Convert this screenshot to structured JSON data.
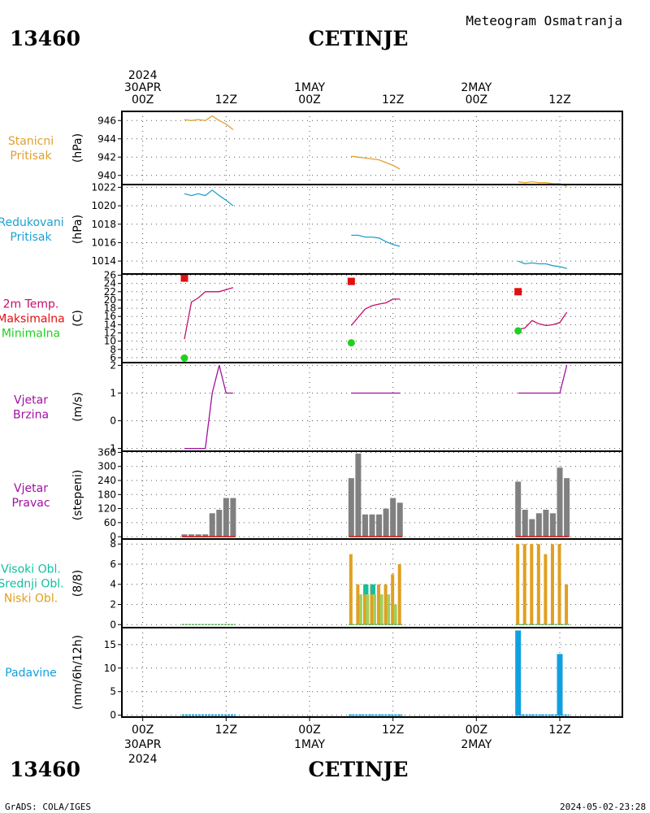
{
  "header": {
    "station_id": "13460",
    "station_name": "CETINJE",
    "title": "Meteogram Osmatranja"
  },
  "footer": {
    "station_id": "13460",
    "station_name": "CETINJE",
    "credit": "GrADS: COLA/IGES",
    "timestamp": "2024-05-02-23:28"
  },
  "colors": {
    "pressure": "#e0a030",
    "reduced": "#20a0d0",
    "temp_line": "#c0106a",
    "tmax": "#e01010",
    "tmin": "#20d020",
    "wind": "#a010a0",
    "bar": "#808080",
    "cloud_high": "#10c0a0",
    "cloud_mid": "#a0d060",
    "cloud_low": "#e0a020",
    "precip": "#10a0e0"
  },
  "time_axis": {
    "ticks": [
      {
        "h": 0,
        "top": [
          "2024",
          "30APR",
          "00Z"
        ],
        "bottom": [
          "00Z",
          "30APR",
          "2024"
        ]
      },
      {
        "h": 12,
        "top": [
          "12Z"
        ],
        "bottom": [
          "12Z"
        ]
      },
      {
        "h": 24,
        "top": [
          "1MAY",
          "00Z"
        ],
        "bottom": [
          "00Z",
          "1MAY"
        ]
      },
      {
        "h": 36,
        "top": [
          "12Z"
        ],
        "bottom": [
          "12Z"
        ]
      },
      {
        "h": 48,
        "top": [
          "2MAY",
          "00Z"
        ],
        "bottom": [
          "00Z",
          "2MAY"
        ]
      },
      {
        "h": 60,
        "top": [
          "12Z"
        ],
        "bottom": [
          "12Z"
        ]
      }
    ],
    "range_hours": [
      -3,
      69
    ]
  },
  "chart_data": [
    {
      "type": "line",
      "label": [
        "Stanicni",
        "Pritisak"
      ],
      "label_color": "#e0a030",
      "ylabel": "(hPa)",
      "yticks": [
        940,
        942,
        944,
        946
      ],
      "ylim": [
        939,
        947
      ],
      "series": [
        {
          "color": "#e0a030",
          "points": [
            [
              6,
              946.1
            ],
            [
              7,
              946.0
            ],
            [
              8,
              946.1
            ],
            [
              9,
              946.0
            ],
            [
              10,
              946.5
            ],
            [
              11,
              946.0
            ],
            [
              12,
              945.6
            ],
            [
              13,
              945.0
            ]
          ]
        },
        {
          "color": "#e0a030",
          "points": [
            [
              30,
              942.1
            ],
            [
              31,
              942.0
            ],
            [
              32,
              941.9
            ],
            [
              33,
              941.8
            ],
            [
              34,
              941.7
            ],
            [
              35,
              941.4
            ],
            [
              36,
              941.1
            ],
            [
              37,
              940.7
            ]
          ]
        },
        {
          "color": "#e0a030",
          "points": [
            [
              54,
              939.3
            ],
            [
              55,
              939.2
            ],
            [
              56,
              939.3
            ],
            [
              57,
              939.2
            ],
            [
              58,
              939.2
            ],
            [
              59,
              939.1
            ],
            [
              60,
              939.1
            ],
            [
              61,
              938.8
            ]
          ]
        }
      ]
    },
    {
      "type": "line",
      "label": [
        "Redukovani",
        "Pritisak"
      ],
      "label_color": "#20a0d0",
      "ylabel": "(hPa)",
      "yticks": [
        1014,
        1016,
        1018,
        1020,
        1022
      ],
      "ylim": [
        1012.6,
        1022.3
      ],
      "series": [
        {
          "color": "#20a0d0",
          "points": [
            [
              6,
              1021.3
            ],
            [
              7,
              1021.1
            ],
            [
              8,
              1021.3
            ],
            [
              9,
              1021.1
            ],
            [
              10,
              1021.7
            ],
            [
              11,
              1021.1
            ],
            [
              12,
              1020.6
            ],
            [
              13,
              1020.0
            ]
          ]
        },
        {
          "color": "#20a0d0",
          "points": [
            [
              30,
              1016.8
            ],
            [
              31,
              1016.8
            ],
            [
              32,
              1016.6
            ],
            [
              33,
              1016.6
            ],
            [
              34,
              1016.5
            ],
            [
              35,
              1016.1
            ],
            [
              36,
              1015.8
            ],
            [
              37,
              1015.6
            ]
          ]
        },
        {
          "color": "#20a0d0",
          "points": [
            [
              54,
              1014.0
            ],
            [
              55,
              1013.7
            ],
            [
              56,
              1013.8
            ],
            [
              57,
              1013.7
            ],
            [
              58,
              1013.7
            ],
            [
              59,
              1013.5
            ],
            [
              60,
              1013.4
            ],
            [
              61,
              1013.2
            ]
          ]
        }
      ]
    },
    {
      "type": "line",
      "label": [
        "2m Temp.",
        "Maksimalna",
        "Minimalna"
      ],
      "label_colors": [
        "#c0106a",
        "#e01010",
        "#20d020"
      ],
      "ylabel": "(C)",
      "yticks": [
        6,
        8,
        10,
        12,
        14,
        16,
        18,
        20,
        22,
        24,
        26
      ],
      "ylim": [
        4.8,
        26.3
      ],
      "series": [
        {
          "color": "#c0106a",
          "points": [
            [
              6,
              10.5
            ],
            [
              7,
              19.5
            ],
            [
              8,
              20.5
            ],
            [
              9,
              22.0
            ],
            [
              10,
              22.0
            ],
            [
              11,
              22.0
            ],
            [
              12,
              22.5
            ],
            [
              13,
              23.0
            ]
          ]
        },
        {
          "color": "#c0106a",
          "points": [
            [
              30,
              13.8
            ],
            [
              31,
              15.8
            ],
            [
              32,
              17.8
            ],
            [
              33,
              18.6
            ],
            [
              34,
              19.0
            ],
            [
              35,
              19.3
            ],
            [
              36,
              20.2
            ],
            [
              37,
              20.2
            ]
          ]
        },
        {
          "color": "#c0106a",
          "points": [
            [
              54,
              12.8
            ],
            [
              55,
              13.2
            ],
            [
              56,
              15.0
            ],
            [
              57,
              14.2
            ],
            [
              58,
              13.8
            ],
            [
              59,
              14.0
            ],
            [
              60,
              14.5
            ],
            [
              61,
              17.0
            ]
          ]
        }
      ],
      "markers": [
        {
          "color": "#e01010",
          "shape": "square",
          "points": [
            [
              6,
              25.3
            ],
            [
              30,
              24.5
            ],
            [
              54,
              22.0
            ]
          ]
        },
        {
          "color": "#20d020",
          "shape": "circle",
          "points": [
            [
              6,
              5.9
            ],
            [
              30,
              9.6
            ],
            [
              54,
              12.5
            ]
          ]
        }
      ]
    },
    {
      "type": "line",
      "label": [
        "Vjetar",
        "Brzina"
      ],
      "label_color": "#a010a0",
      "ylabel": "(m/s)",
      "yticks": [
        -1,
        0,
        1,
        2
      ],
      "ylim": [
        -1.1,
        2.1
      ],
      "series": [
        {
          "color": "#a010a0",
          "points": [
            [
              6,
              -1
            ],
            [
              7,
              -1
            ],
            [
              8,
              -1
            ],
            [
              9,
              -1
            ],
            [
              10,
              1
            ],
            [
              11,
              2
            ],
            [
              12,
              1
            ],
            [
              13,
              1
            ]
          ]
        },
        {
          "color": "#a010a0",
          "points": [
            [
              30,
              1
            ],
            [
              31,
              1
            ],
            [
              32,
              1
            ],
            [
              33,
              1
            ],
            [
              34,
              1
            ],
            [
              35,
              1
            ],
            [
              36,
              1
            ],
            [
              37,
              1
            ]
          ]
        },
        {
          "color": "#a010a0",
          "points": [
            [
              54,
              1
            ],
            [
              55,
              1
            ],
            [
              56,
              1
            ],
            [
              57,
              1
            ],
            [
              58,
              1
            ],
            [
              59,
              1
            ],
            [
              60,
              1
            ],
            [
              61,
              2
            ]
          ]
        }
      ]
    },
    {
      "type": "bar",
      "label": [
        "Vjetar",
        "Pravac"
      ],
      "label_color": "#a010a0",
      "ylabel": "(stepeni)",
      "yticks": [
        0,
        60,
        120,
        180,
        240,
        300,
        360
      ],
      "ylim": [
        -10,
        365
      ],
      "bar_color": "#808080",
      "bars": [
        [
          6,
          10
        ],
        [
          7,
          10
        ],
        [
          8,
          10
        ],
        [
          9,
          10
        ],
        [
          10,
          100
        ],
        [
          11,
          115
        ],
        [
          12,
          165
        ],
        [
          13,
          165
        ],
        [
          30,
          250
        ],
        [
          31,
          355
        ],
        [
          32,
          95
        ],
        [
          33,
          95
        ],
        [
          34,
          95
        ],
        [
          35,
          120
        ],
        [
          36,
          165
        ],
        [
          37,
          145
        ],
        [
          54,
          235
        ],
        [
          55,
          115
        ],
        [
          56,
          75
        ],
        [
          57,
          100
        ],
        [
          58,
          115
        ],
        [
          59,
          100
        ],
        [
          60,
          295
        ],
        [
          61,
          250
        ]
      ]
    },
    {
      "type": "bar",
      "label": [
        "Visoki Obl.",
        "Srednji Obl.",
        "Niski Obl."
      ],
      "label_colors": [
        "#10c0a0",
        "#10c0a0",
        "#e0a020"
      ],
      "ylabel": "(8/8)",
      "yticks": [
        0,
        2,
        4,
        6,
        8
      ],
      "ylim": [
        -0.3,
        8.5
      ],
      "low": [
        [
          30,
          7
        ],
        [
          31,
          4
        ],
        [
          32,
          4
        ],
        [
          33,
          4
        ],
        [
          34,
          4
        ],
        [
          35,
          4
        ],
        [
          36,
          5
        ],
        [
          37,
          6
        ],
        [
          54,
          8
        ],
        [
          55,
          8
        ],
        [
          56,
          8
        ],
        [
          57,
          8
        ],
        [
          58,
          7
        ],
        [
          59,
          8
        ],
        [
          60,
          8
        ],
        [
          61,
          4
        ]
      ],
      "mid": [
        [
          31,
          3
        ],
        [
          32,
          3
        ],
        [
          33,
          3
        ],
        [
          34,
          3
        ],
        [
          35,
          3
        ],
        [
          36,
          2
        ]
      ],
      "high": [
        [
          32,
          4
        ],
        [
          33,
          4
        ]
      ]
    },
    {
      "type": "bar",
      "label": [
        "Padavine"
      ],
      "label_color": "#10a0e0",
      "ylabel": "(mm/6h/12h)",
      "yticks": [
        0,
        5,
        10,
        15
      ],
      "ylim": [
        -0.4,
        18.6
      ],
      "bar_color": "#10a0e0",
      "bars": [
        [
          54,
          18
        ],
        [
          60,
          13
        ]
      ]
    }
  ]
}
